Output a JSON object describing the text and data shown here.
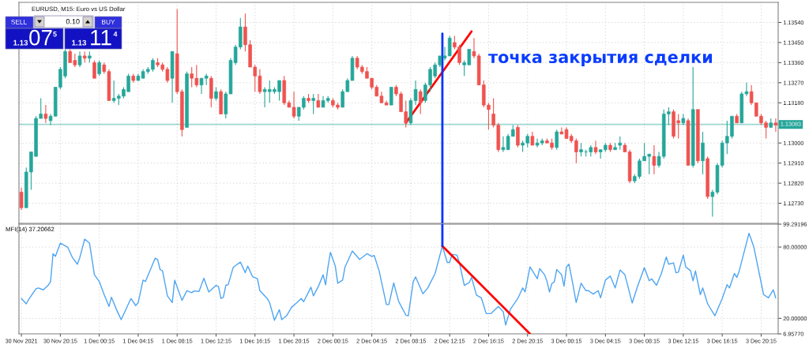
{
  "chart_data": [
    {
      "type": "candlestick",
      "title": "EURUSD, M15: Euro vs US Dollar",
      "x": [
        "2021-11-30T16:15",
        "2021-11-30T16:45",
        "2021-11-30T17:15",
        "2021-11-30T17:45",
        "2021-11-30T18:15",
        "2021-11-30T18:45",
        "2021-11-30T19:15",
        "2021-11-30T19:45",
        "2021-11-30T20:15",
        "2021-11-30T20:45",
        "2021-11-30T21:15",
        "2021-11-30T21:45",
        "2021-11-30T22:15",
        "2021-11-30T22:45",
        "2021-11-30T23:15",
        "2021-11-30T23:45",
        "2021-12-01T00:15",
        "2021-12-01T00:45",
        "2021-12-01T01:15",
        "2021-12-01T01:45",
        "2021-12-01T02:15",
        "2021-12-01T02:45",
        "2021-12-01T03:15",
        "2021-12-01T03:45",
        "2021-12-01T04:15",
        "2021-12-01T04:45",
        "2021-12-01T05:15",
        "2021-12-01T05:45",
        "2021-12-01T06:15",
        "2021-12-01T06:45",
        "2021-12-01T07:15",
        "2021-12-01T07:45",
        "2021-12-01T08:15",
        "2021-12-01T08:45",
        "2021-12-01T09:15",
        "2021-12-01T09:45",
        "2021-12-01T10:15",
        "2021-12-01T10:45",
        "2021-12-01T11:15",
        "2021-12-01T11:45",
        "2021-12-01T12:15",
        "2021-12-01T12:45",
        "2021-12-01T13:15",
        "2021-12-01T13:45",
        "2021-12-01T14:15",
        "2021-12-01T14:45",
        "2021-12-01T15:15",
        "2021-12-01T15:45",
        "2021-12-01T16:15",
        "2021-12-01T16:45",
        "2021-12-01T17:15",
        "2021-12-01T17:45",
        "2021-12-01T18:15",
        "2021-12-01T18:45",
        "2021-12-01T19:15",
        "2021-12-01T19:45",
        "2021-12-01T20:15",
        "2021-12-01T20:45",
        "2021-12-01T21:15",
        "2021-12-01T21:45",
        "2021-12-01T22:15",
        "2021-12-01T22:45",
        "2021-12-01T23:15",
        "2021-12-01T23:45",
        "2021-12-02T00:15",
        "2021-12-02T00:45",
        "2021-12-02T01:15",
        "2021-12-02T01:45",
        "2021-12-02T02:15",
        "2021-12-02T02:45",
        "2021-12-02T03:15",
        "2021-12-02T03:45",
        "2021-12-02T04:15",
        "2021-12-02T04:45",
        "2021-12-02T05:15",
        "2021-12-02T05:45",
        "2021-12-02T06:15",
        "2021-12-02T06:45",
        "2021-12-02T07:15",
        "2021-12-02T07:45",
        "2021-12-02T08:15",
        "2021-12-02T08:45",
        "2021-12-02T09:15",
        "2021-12-02T09:45",
        "2021-12-02T10:15",
        "2021-12-02T10:45",
        "2021-12-02T11:15",
        "2021-12-02T11:45",
        "2021-12-02T12:15",
        "2021-12-02T12:45",
        "2021-12-02T13:15",
        "2021-12-02T13:45",
        "2021-12-02T14:15",
        "2021-12-02T14:45",
        "2021-12-02T15:15",
        "2021-12-02T15:45",
        "2021-12-02T16:15",
        "2021-12-02T16:45",
        "2021-12-02T17:15",
        "2021-12-02T17:45",
        "2021-12-02T18:15",
        "2021-12-02T18:45",
        "2021-12-02T19:15",
        "2021-12-02T19:45",
        "2021-12-02T20:15",
        "2021-12-02T20:45",
        "2021-12-02T21:15",
        "2021-12-02T21:45",
        "2021-12-02T22:15",
        "2021-12-02T22:45",
        "2021-12-02T23:15",
        "2021-12-02T23:45",
        "2021-12-03T00:15",
        "2021-12-03T00:45",
        "2021-12-03T01:15",
        "2021-12-03T01:45",
        "2021-12-03T02:15",
        "2021-12-03T02:45",
        "2021-12-03T03:15",
        "2021-12-03T03:45",
        "2021-12-03T04:15",
        "2021-12-03T04:45",
        "2021-12-03T05:15",
        "2021-12-03T05:45",
        "2021-12-03T06:15",
        "2021-12-03T06:45",
        "2021-12-03T07:15",
        "2021-12-03T07:45",
        "2021-12-03T08:15",
        "2021-12-03T08:45",
        "2021-12-03T09:15",
        "2021-12-03T09:45",
        "2021-12-03T10:15",
        "2021-12-03T10:45",
        "2021-12-03T11:15",
        "2021-12-03T11:45",
        "2021-12-03T12:15",
        "2021-12-03T12:45",
        "2021-12-03T13:15",
        "2021-12-03T13:45",
        "2021-12-03T14:15",
        "2021-12-03T14:45",
        "2021-12-03T15:15",
        "2021-12-03T15:45",
        "2021-12-03T16:15",
        "2021-12-03T16:45",
        "2021-12-03T17:15",
        "2021-12-03T17:45",
        "2021-12-03T18:15",
        "2021-12-03T18:45",
        "2021-12-03T19:15",
        "2021-12-03T19:45",
        "2021-12-03T20:15",
        "2021-12-03T20:45",
        "2021-12-03T21:15",
        "2021-12-03T21:45"
      ],
      "ohlc": [
        [
          1.1278,
          1.128,
          1.127,
          1.1271
        ],
        [
          1.1271,
          1.1289,
          1.1271,
          1.1287
        ],
        [
          1.1287,
          1.1296,
          1.1279,
          1.1296
        ],
        [
          1.1294,
          1.1312,
          1.1294,
          1.1311
        ],
        [
          1.1311,
          1.132,
          1.1311,
          1.1313
        ],
        [
          1.1313,
          1.1317,
          1.1309,
          1.1311
        ],
        [
          1.131,
          1.1313,
          1.1308,
          1.1312
        ],
        [
          1.1312,
          1.1325,
          1.1312,
          1.1325
        ],
        [
          1.1325,
          1.1334,
          1.1324,
          1.1333
        ],
        [
          1.133,
          1.1342,
          1.1329,
          1.1341
        ],
        [
          1.1341,
          1.1342,
          1.1336,
          1.1336
        ],
        [
          1.1337,
          1.134,
          1.1334,
          1.1335
        ],
        [
          1.1335,
          1.1341,
          1.1334,
          1.1339
        ],
        [
          1.1339,
          1.1341,
          1.1336,
          1.1338
        ],
        [
          1.1338,
          1.1341,
          1.1336,
          1.1339
        ],
        [
          1.1336,
          1.1337,
          1.1329,
          1.1329
        ],
        [
          1.1331,
          1.1337,
          1.133,
          1.1336
        ],
        [
          1.1335,
          1.1336,
          1.1331,
          1.1332
        ],
        [
          1.1332,
          1.1333,
          1.1319,
          1.1319
        ],
        [
          1.1319,
          1.1328,
          1.1318,
          1.132
        ],
        [
          1.132,
          1.1322,
          1.1317,
          1.1321
        ],
        [
          1.1321,
          1.1325,
          1.132,
          1.1324
        ],
        [
          1.1323,
          1.1331,
          1.1323,
          1.133
        ],
        [
          1.133,
          1.1331,
          1.1327,
          1.1328
        ],
        [
          1.1328,
          1.1331,
          1.1328,
          1.133
        ],
        [
          1.1329,
          1.1333,
          1.1329,
          1.1332
        ],
        [
          1.1332,
          1.1334,
          1.1331,
          1.1333
        ],
        [
          1.1333,
          1.1338,
          1.1332,
          1.1337
        ],
        [
          1.1336,
          1.1338,
          1.1334,
          1.1335
        ],
        [
          1.1335,
          1.1336,
          1.1332,
          1.1333
        ],
        [
          1.1333,
          1.1334,
          1.1327,
          1.1328
        ],
        [
          1.1329,
          1.1341,
          1.1318,
          1.1341
        ],
        [
          1.134,
          1.136,
          1.1322,
          1.1323
        ],
        [
          1.1323,
          1.1324,
          1.1303,
          1.1306
        ],
        [
          1.1307,
          1.1332,
          1.1307,
          1.1331
        ],
        [
          1.1331,
          1.1334,
          1.1325,
          1.1329
        ],
        [
          1.1329,
          1.1335,
          1.1325,
          1.1326
        ],
        [
          1.1326,
          1.1329,
          1.1322,
          1.1329
        ],
        [
          1.1329,
          1.1331,
          1.1326,
          1.133
        ],
        [
          1.1329,
          1.133,
          1.1316,
          1.132
        ],
        [
          1.132,
          1.1325,
          1.1319,
          1.1323
        ],
        [
          1.1323,
          1.1324,
          1.1313,
          1.1313
        ],
        [
          1.1313,
          1.1323,
          1.1311,
          1.1322
        ],
        [
          1.1322,
          1.1338,
          1.1322,
          1.1337
        ],
        [
          1.1336,
          1.1344,
          1.1335,
          1.1343
        ],
        [
          1.1343,
          1.1356,
          1.1342,
          1.1352
        ],
        [
          1.1352,
          1.1358,
          1.1341,
          1.1344
        ],
        [
          1.1344,
          1.1346,
          1.1334,
          1.1334
        ],
        [
          1.1334,
          1.1335,
          1.1323,
          1.133
        ],
        [
          1.133,
          1.1333,
          1.1322,
          1.1323
        ],
        [
          1.1323,
          1.1325,
          1.1316,
          1.1324
        ],
        [
          1.1323,
          1.1328,
          1.1318,
          1.1324
        ],
        [
          1.1323,
          1.1325,
          1.1322,
          1.1324
        ],
        [
          1.1323,
          1.1328,
          1.1319,
          1.1328
        ],
        [
          1.1328,
          1.133,
          1.1317,
          1.1318
        ],
        [
          1.1318,
          1.1319,
          1.1316,
          1.1316
        ],
        [
          1.1316,
          1.1323,
          1.1311,
          1.1312
        ],
        [
          1.1312,
          1.1316,
          1.131,
          1.1316
        ],
        [
          1.1316,
          1.1321,
          1.1315,
          1.132
        ],
        [
          1.132,
          1.1322,
          1.1318,
          1.1319
        ],
        [
          1.1319,
          1.1322,
          1.1313,
          1.132
        ],
        [
          1.1319,
          1.1322,
          1.1316,
          1.1316
        ],
        [
          1.1316,
          1.1321,
          1.1316,
          1.1319
        ],
        [
          1.1319,
          1.1321,
          1.1318,
          1.132
        ],
        [
          1.1319,
          1.132,
          1.1316,
          1.1317
        ],
        [
          1.1317,
          1.1318,
          1.1315,
          1.1316
        ],
        [
          1.1316,
          1.1324,
          1.1316,
          1.1323
        ],
        [
          1.1323,
          1.1329,
          1.1323,
          1.1328
        ],
        [
          1.1328,
          1.1339,
          1.1328,
          1.1338
        ],
        [
          1.1338,
          1.1339,
          1.1333,
          1.1334
        ],
        [
          1.1334,
          1.1335,
          1.1331,
          1.1332
        ],
        [
          1.1332,
          1.1334,
          1.1329,
          1.1329
        ],
        [
          1.1329,
          1.1329,
          1.1324,
          1.1325
        ],
        [
          1.1325,
          1.1326,
          1.1321,
          1.1321
        ],
        [
          1.1321,
          1.1323,
          1.1318,
          1.1318
        ],
        [
          1.1318,
          1.1319,
          1.1317,
          1.1317
        ],
        [
          1.1317,
          1.1325,
          1.1317,
          1.1325
        ],
        [
          1.1325,
          1.1326,
          1.1321,
          1.1322
        ],
        [
          1.1322,
          1.1323,
          1.1314,
          1.1314
        ],
        [
          1.1314,
          1.1319,
          1.1307,
          1.1309
        ],
        [
          1.1309,
          1.132,
          1.1308,
          1.1319
        ],
        [
          1.1319,
          1.1328,
          1.1317,
          1.1324
        ],
        [
          1.1323,
          1.1324,
          1.1313,
          1.1318
        ],
        [
          1.1319,
          1.1327,
          1.1318,
          1.1326
        ],
        [
          1.1326,
          1.1334,
          1.1323,
          1.1333
        ],
        [
          1.133,
          1.1336,
          1.1329,
          1.1335
        ],
        [
          1.1335,
          1.1339,
          1.1334,
          1.1339
        ],
        [
          1.1338,
          1.1343,
          1.1337,
          1.1339
        ],
        [
          1.1339,
          1.1348,
          1.1339,
          1.1347
        ],
        [
          1.1345,
          1.1348,
          1.1342,
          1.1343
        ],
        [
          1.1343,
          1.1344,
          1.1335,
          1.1336
        ],
        [
          1.1335,
          1.1337,
          1.133,
          1.1336
        ],
        [
          1.1335,
          1.1342,
          1.1335,
          1.1342
        ],
        [
          1.1341,
          1.1347,
          1.1338,
          1.1339
        ],
        [
          1.1339,
          1.134,
          1.1326,
          1.1326
        ],
        [
          1.1326,
          1.1328,
          1.1316,
          1.1317
        ],
        [
          1.1317,
          1.1318,
          1.1306,
          1.1315
        ],
        [
          1.1313,
          1.132,
          1.1307,
          1.1308
        ],
        [
          1.1308,
          1.1309,
          1.1296,
          1.1297
        ],
        [
          1.1297,
          1.1303,
          1.1296,
          1.1298
        ],
        [
          1.1297,
          1.1304,
          1.1297,
          1.1303
        ],
        [
          1.1303,
          1.1308,
          1.1303,
          1.1306
        ],
        [
          1.1307,
          1.1308,
          1.1298,
          1.1299
        ],
        [
          1.1299,
          1.1301,
          1.1296,
          1.13
        ],
        [
          1.13,
          1.1304,
          1.1298,
          1.1303
        ],
        [
          1.1303,
          1.1305,
          1.1299,
          1.1299
        ],
        [
          1.1299,
          1.1302,
          1.1298,
          1.13
        ],
        [
          1.13,
          1.1302,
          1.1299,
          1.1301
        ],
        [
          1.1301,
          1.1302,
          1.13,
          1.13
        ],
        [
          1.13,
          1.1302,
          1.1297,
          1.1298
        ],
        [
          1.1298,
          1.1306,
          1.1297,
          1.1305
        ],
        [
          1.1305,
          1.1307,
          1.1304,
          1.1304
        ],
        [
          1.1306,
          1.1307,
          1.1302,
          1.1302
        ],
        [
          1.1303,
          1.1304,
          1.13,
          1.1301
        ],
        [
          1.1301,
          1.1302,
          1.1291,
          1.1296
        ],
        [
          1.1296,
          1.13,
          1.1294,
          1.1297
        ],
        [
          1.1296,
          1.1297,
          1.1294,
          1.1296
        ],
        [
          1.1296,
          1.1299,
          1.1294,
          1.1298
        ],
        [
          1.1298,
          1.1301,
          1.1295,
          1.1296
        ],
        [
          1.1296,
          1.1297,
          1.1293,
          1.1297
        ],
        [
          1.1297,
          1.13,
          1.1296,
          1.1299
        ],
        [
          1.1299,
          1.13,
          1.1296,
          1.1297
        ],
        [
          1.1297,
          1.13,
          1.1297,
          1.1298
        ],
        [
          1.1299,
          1.1303,
          1.1297,
          1.13
        ],
        [
          1.1299,
          1.13,
          1.1296,
          1.1296
        ],
        [
          1.1296,
          1.1297,
          1.1282,
          1.1283
        ],
        [
          1.1283,
          1.1286,
          1.1282,
          1.1285
        ],
        [
          1.1285,
          1.1293,
          1.1284,
          1.1292
        ],
        [
          1.1292,
          1.13,
          1.1292,
          1.1294
        ],
        [
          1.1294,
          1.1295,
          1.1286,
          1.1295
        ],
        [
          1.1294,
          1.1299,
          1.1286,
          1.129
        ],
        [
          1.129,
          1.1296,
          1.1289,
          1.1294
        ],
        [
          1.1294,
          1.1315,
          1.1293,
          1.1313
        ],
        [
          1.1313,
          1.1316,
          1.1308,
          1.1314
        ],
        [
          1.1314,
          1.1315,
          1.1302,
          1.1303
        ],
        [
          1.131,
          1.1313,
          1.1302,
          1.1309
        ],
        [
          1.1309,
          1.1313,
          1.1308,
          1.1311
        ],
        [
          1.131,
          1.1311,
          1.129,
          1.129
        ],
        [
          1.129,
          1.1334,
          1.1289,
          1.1315
        ],
        [
          1.1315,
          1.1315,
          1.1291,
          1.1292
        ],
        [
          1.1292,
          1.1305,
          1.1286,
          1.13
        ],
        [
          1.1293,
          1.1294,
          1.1275,
          1.1276
        ],
        [
          1.1276,
          1.1279,
          1.1267,
          1.1278
        ],
        [
          1.1278,
          1.1291,
          1.1277,
          1.129
        ],
        [
          1.129,
          1.1301,
          1.1289,
          1.13
        ],
        [
          1.13,
          1.131,
          1.1295,
          1.1303
        ],
        [
          1.1303,
          1.1312,
          1.1302,
          1.1312
        ],
        [
          1.1312,
          1.1313,
          1.1309,
          1.1309
        ],
        [
          1.1309,
          1.1323,
          1.1309,
          1.1322
        ],
        [
          1.1322,
          1.1327,
          1.1321,
          1.1323
        ],
        [
          1.1323,
          1.1326,
          1.1317,
          1.1318
        ],
        [
          1.1318,
          1.1318,
          1.1312,
          1.1312
        ],
        [
          1.1312,
          1.1313,
          1.1308,
          1.1309
        ],
        [
          1.1309,
          1.131,
          1.1302,
          1.1307
        ],
        [
          1.1307,
          1.1311,
          1.1307,
          1.1309
        ],
        [
          1.1309,
          1.1311,
          1.1305,
          1.1308
        ]
      ],
      "colors": [
        "#ef5350",
        "#26a69a",
        "#26a69a",
        "#26a69a",
        "#26a69a",
        "#ef5350",
        "#26a69a",
        "#26a69a",
        "#26a69a",
        "#26a69a",
        "#ef5350",
        "#ef5350",
        "#26a69a",
        "#ef5350",
        "#26a69a",
        "#ef5350",
        "#26a69a",
        "#ef5350",
        "#ef5350",
        "#26a69a",
        "#26a69a",
        "#26a69a",
        "#26a69a",
        "#ef5350",
        "#26a69a",
        "#26a69a",
        "#26a69a",
        "#26a69a",
        "#ef5350",
        "#ef5350",
        "#ef5350",
        "#26a69a",
        "#ef5350",
        "#ef5350",
        "#26a69a",
        "#ef5350",
        "#ef5350",
        "#26a69a",
        "#26a69a",
        "#ef5350",
        "#26a69a",
        "#ef5350",
        "#26a69a",
        "#26a69a",
        "#26a69a",
        "#26a69a",
        "#ef5350",
        "#ef5350",
        "#ef5350",
        "#ef5350",
        "#26a69a",
        "#26a69a",
        "#26a69a",
        "#26a69a",
        "#ef5350",
        "#ef5350",
        "#ef5350",
        "#26a69a",
        "#26a69a",
        "#ef5350",
        "#26a69a",
        "#ef5350",
        "#26a69a",
        "#26a69a",
        "#ef5350",
        "#ef5350",
        "#26a69a",
        "#26a69a",
        "#26a69a",
        "#ef5350",
        "#ef5350",
        "#ef5350",
        "#ef5350",
        "#ef5350",
        "#ef5350",
        "#ef5350",
        "#26a69a",
        "#ef5350",
        "#ef5350",
        "#ef5350",
        "#26a69a",
        "#26a69a",
        "#ef5350",
        "#26a69a",
        "#26a69a",
        "#26a69a",
        "#26a69a",
        "#26a69a",
        "#26a69a",
        "#ef5350",
        "#ef5350",
        "#26a69a",
        "#26a69a",
        "#ef5350",
        "#ef5350",
        "#ef5350",
        "#ef5350",
        "#ef5350",
        "#ef5350",
        "#26a69a",
        "#26a69a",
        "#26a69a",
        "#ef5350",
        "#26a69a",
        "#26a69a",
        "#ef5350",
        "#26a69a",
        "#26a69a",
        "#ef5350",
        "#ef5350",
        "#26a69a",
        "#ef5350",
        "#ef5350",
        "#ef5350",
        "#ef5350",
        "#26a69a",
        "#26a69a",
        "#26a69a",
        "#ef5350",
        "#26a69a",
        "#26a69a",
        "#ef5350",
        "#26a69a",
        "#26a69a",
        "#ef5350",
        "#ef5350",
        "#26a69a",
        "#26a69a",
        "#26a69a",
        "#26a69a",
        "#ef5350",
        "#26a69a",
        "#26a69a",
        "#26a69a",
        "#ef5350",
        "#ef5350",
        "#26a69a",
        "#ef5350",
        "#26a69a",
        "#ef5350",
        "#26a69a",
        "#ef5350",
        "#26a69a",
        "#26a69a",
        "#26a69a",
        "#26a69a",
        "#26a69a",
        "#ef5350",
        "#26a69a",
        "#26a69a",
        "#ef5350",
        "#ef5350",
        "#ef5350",
        "#ef5350",
        "#26a69a",
        "#ef5350"
      ],
      "series": [
        {
          "type": "line",
          "color": "#ff0000",
          "x": [
            "2021-12-02T07:45",
            "2021-12-02T14:30"
          ],
          "values": [
            1.1309,
            1.135
          ]
        },
        {
          "type": "line",
          "color": "#0033ff",
          "x": [
            "2021-12-02T11:30",
            "2021-12-02T11:30"
          ],
          "values": [
            1.1349,
            1.1264
          ]
        }
      ],
      "xlim": [
        "2021-11-30T16:00",
        "2021-12-03T22:00"
      ],
      "xticks": [
        {
          "value": "2021-11-30T16:15",
          "label": null
        },
        {
          "value": "2021-11-30T20:15",
          "label": null
        },
        {
          "value": "2021-12-01T00:15",
          "label": null
        },
        {
          "value": "2021-12-01T04:15",
          "label": null
        },
        {
          "value": "2021-12-01T08:15",
          "label": null
        },
        {
          "value": "2021-12-01T12:15",
          "label": null
        },
        {
          "value": "2021-12-01T16:15",
          "label": null
        },
        {
          "value": "2021-12-01T20:15",
          "label": null
        },
        {
          "value": "2021-12-02T00:15",
          "label": null
        },
        {
          "value": "2021-12-02T04:15",
          "label": null
        },
        {
          "value": "2021-12-02T08:15",
          "label": null
        },
        {
          "value": "2021-12-02T12:15",
          "label": null
        },
        {
          "value": "2021-12-02T16:15",
          "label": null
        },
        {
          "value": "2021-12-02T20:15",
          "label": null
        },
        {
          "value": "2021-12-03T00:15",
          "label": null
        },
        {
          "value": "2021-12-03T04:15",
          "label": null
        },
        {
          "value": "2021-12-03T08:15",
          "label": null
        },
        {
          "value": "2021-12-03T12:15",
          "label": null
        },
        {
          "value": "2021-12-03T16:15",
          "label": null
        },
        {
          "value": "2021-12-03T20:15",
          "label": null
        }
      ],
      "ylim": [
        1.1264,
        1.1363
      ],
      "yticks": [
        {
          "value": 1.1273,
          "label": "1.12730"
        },
        {
          "value": 1.1282,
          "label": "1.12820"
        },
        {
          "value": 1.1291,
          "label": "1.12910"
        },
        {
          "value": 1.13,
          "label": "1.13000"
        },
        {
          "value": 1.1318,
          "label": "1.13180"
        },
        {
          "value": 1.1327,
          "label": "1.13270"
        },
        {
          "value": 1.1336,
          "label": "1.13360"
        },
        {
          "value": 1.1345,
          "label": "1.13450"
        },
        {
          "value": 1.1354,
          "label": "1.13540"
        }
      ],
      "tick_labels": "y",
      "grid": true,
      "ref_lines": [
        {
          "axis": "y",
          "value": 1.13083,
          "label": "1.13083",
          "color": "#26a69a"
        }
      ],
      "annotations": [
        "точка закрытия сделки",
        "SELL",
        "0.10",
        "BUY",
        "1.13",
        "07",
        "5",
        "1.13",
        "11",
        "4"
      ]
    },
    {
      "type": "line",
      "title": "MFI(14) 37.20662",
      "series": [
        {
          "color": "#4ea5f2",
          "x": [
            "2021-11-30T16:15",
            "2021-11-30T16:45",
            "2021-11-30T17:00",
            "2021-11-30T17:45",
            "2021-11-30T18:00",
            "2021-11-30T18:30",
            "2021-11-30T19:00",
            "2021-11-30T19:15",
            "2021-11-30T19:30",
            "2021-11-30T19:45",
            "2021-11-30T20:15",
            "2021-11-30T21:00",
            "2021-11-30T21:30",
            "2021-11-30T22:00",
            "2021-11-30T22:15",
            "2021-11-30T22:45",
            "2021-11-30T23:15",
            "2021-11-30T23:45",
            "2021-12-01T00:15",
            "2021-12-01T00:45",
            "2021-12-01T01:15",
            "2021-12-01T01:30",
            "2021-12-01T02:00",
            "2021-12-01T02:15",
            "2021-12-01T02:30",
            "2021-12-01T03:30",
            "2021-12-01T04:00",
            "2021-12-01T04:15",
            "2021-12-01T04:45",
            "2021-12-01T05:00",
            "2021-12-01T06:00",
            "2021-12-01T06:15",
            "2021-12-01T06:30",
            "2021-12-01T06:45",
            "2021-12-01T07:15",
            "2021-12-01T07:45",
            "2021-12-01T08:00",
            "2021-12-01T08:45",
            "2021-12-01T09:15",
            "2021-12-01T09:45",
            "2021-12-01T10:00",
            "2021-12-01T10:30",
            "2021-12-01T11:00",
            "2021-12-01T11:30",
            "2021-12-01T12:15",
            "2021-12-01T12:30",
            "2021-12-01T12:45",
            "2021-12-01T13:00",
            "2021-12-01T13:15",
            "2021-12-01T13:30",
            "2021-12-01T14:00",
            "2021-12-01T14:15",
            "2021-12-01T14:45",
            "2021-12-01T15:15",
            "2021-12-01T15:30",
            "2021-12-01T16:00",
            "2021-12-01T16:30",
            "2021-12-01T16:45",
            "2021-12-01T17:30",
            "2021-12-01T17:45",
            "2021-12-01T18:15",
            "2021-12-01T18:45",
            "2021-12-01T19:00",
            "2021-12-01T19:30",
            "2021-12-01T20:00",
            "2021-12-01T20:30",
            "2021-12-01T21:00",
            "2021-12-01T21:15",
            "2021-12-01T22:00",
            "2021-12-01T22:15",
            "2021-12-01T22:45",
            "2021-12-01T23:15",
            "2021-12-01T23:30",
            "2021-12-01T23:45",
            "2021-12-02T00:00",
            "2021-12-02T00:30",
            "2021-12-02T00:45",
            "2021-12-02T01:15",
            "2021-12-02T01:30",
            "2021-12-02T02:15",
            "2021-12-02T03:00",
            "2021-12-02T03:45",
            "2021-12-02T04:15",
            "2021-12-02T04:30",
            "2021-12-02T05:00",
            "2021-12-02T05:45",
            "2021-12-02T06:00",
            "2021-12-02T06:30",
            "2021-12-02T07:00",
            "2021-12-02T07:45",
            "2021-12-02T08:00",
            "2021-12-02T08:30",
            "2021-12-02T08:45",
            "2021-12-02T09:30",
            "2021-12-02T10:00",
            "2021-12-02T10:45",
            "2021-12-02T11:30",
            "2021-12-02T12:00",
            "2021-12-02T12:15",
            "2021-12-02T12:30",
            "2021-12-02T13:00",
            "2021-12-02T13:15",
            "2021-12-02T13:45",
            "2021-12-02T14:15",
            "2021-12-02T14:30",
            "2021-12-02T15:00",
            "2021-12-02T15:30",
            "2021-12-02T16:00",
            "2021-12-02T16:30",
            "2021-12-02T17:15",
            "2021-12-02T17:45",
            "2021-12-02T18:00",
            "2021-12-02T18:30",
            "2021-12-02T19:15",
            "2021-12-02T19:45",
            "2021-12-02T20:00",
            "2021-12-02T20:30",
            "2021-12-02T20:45",
            "2021-12-02T21:15",
            "2021-12-02T21:30",
            "2021-12-02T22:00",
            "2021-12-02T22:15",
            "2021-12-02T22:30",
            "2021-12-02T22:45",
            "2021-12-02T23:00",
            "2021-12-02T23:15",
            "2021-12-02T23:45",
            "2021-12-03T00:00",
            "2021-12-03T00:15",
            "2021-12-03T00:30",
            "2021-12-03T00:45",
            "2021-12-03T01:15",
            "2021-12-03T01:45",
            "2021-12-03T02:15",
            "2021-12-03T02:30",
            "2021-12-03T03:00",
            "2021-12-03T03:30",
            "2021-12-03T03:45",
            "2021-12-03T04:15",
            "2021-12-03T04:45",
            "2021-12-03T05:15",
            "2021-12-03T05:45",
            "2021-12-03T06:15",
            "2021-12-03T06:30",
            "2021-12-03T07:00",
            "2021-12-03T07:30",
            "2021-12-03T08:15",
            "2021-12-03T08:45",
            "2021-12-03T09:00",
            "2021-12-03T09:30",
            "2021-12-03T10:00",
            "2021-12-03T10:30",
            "2021-12-03T10:45",
            "2021-12-03T11:15",
            "2021-12-03T11:30",
            "2021-12-03T11:45",
            "2021-12-03T12:15",
            "2021-12-03T12:30",
            "2021-12-03T13:00",
            "2021-12-03T13:15",
            "2021-12-03T13:30",
            "2021-12-03T14:00",
            "2021-12-03T14:15",
            "2021-12-03T14:45",
            "2021-12-03T15:30",
            "2021-12-03T16:15",
            "2021-12-03T16:45",
            "2021-12-03T17:00",
            "2021-12-03T17:30",
            "2021-12-03T17:45",
            "2021-12-03T18:00",
            "2021-12-03T19:00",
            "2021-12-03T19:30",
            "2021-12-03T20:30",
            "2021-12-03T21:00",
            "2021-12-03T21:30",
            "2021-12-03T21:45"
          ],
          "values": [
            36.7,
            32.2,
            36.0,
            44.9,
            45.6,
            44.0,
            47.8,
            51.1,
            74.4,
            72.2,
            83.3,
            80.0,
            71.1,
            65.6,
            71.1,
            86.7,
            83.3,
            56.7,
            51.1,
            40.0,
            30.0,
            37.8,
            27.8,
            23.3,
            18.9,
            36.7,
            30.7,
            33.3,
            52.2,
            51.1,
            70.7,
            69.3,
            61.1,
            60.0,
            38.9,
            33.3,
            52.2,
            35.1,
            43.3,
            41.6,
            43.1,
            42.7,
            53.8,
            42.2,
            47.8,
            46.7,
            36.7,
            37.8,
            47.8,
            48.4,
            62.7,
            64.4,
            67.3,
            58.4,
            64.0,
            55.1,
            53.3,
            43.3,
            36.7,
            33.3,
            18.4,
            27.3,
            18.9,
            22.2,
            29.3,
            32.9,
            36.7,
            34.0,
            46.2,
            38.9,
            46.7,
            56.7,
            48.2,
            63.3,
            75.6,
            64.0,
            49.6,
            52.2,
            63.3,
            76.7,
            69.6,
            74.4,
            72.2,
            72.9,
            60.0,
            31.6,
            31.6,
            49.8,
            34.4,
            22.7,
            22.2,
            50.7,
            54.9,
            40.7,
            45.6,
            57.8,
            80.9,
            67.1,
            67.1,
            73.8,
            73.3,
            66.7,
            47.8,
            50.0,
            54.4,
            39.6,
            37.3,
            24.0,
            24.0,
            30.0,
            25.6,
            14.4,
            27.8,
            36.7,
            45.6,
            42.2,
            63.3,
            60.0,
            53.3,
            61.8,
            56.7,
            51.1,
            42.2,
            49.3,
            50.7,
            61.1,
            56.7,
            47.1,
            63.3,
            65.6,
            55.6,
            33.3,
            49.6,
            43.3,
            43.3,
            40.4,
            43.3,
            37.3,
            52.2,
            55.6,
            45.6,
            60.7,
            56.7,
            48.9,
            32.9,
            45.6,
            62.7,
            51.6,
            53.3,
            47.8,
            57.8,
            71.6,
            65.6,
            66.7,
            58.4,
            58.9,
            73.3,
            63.3,
            60.0,
            51.6,
            60.0,
            40.0,
            45.6,
            32.2,
            22.2,
            36.7,
            48.4,
            45.6,
            57.8,
            54.4,
            60.0,
            91.6,
            80.0,
            40.0,
            37.3,
            44.0,
            37.2
          ]
        },
        {
          "type": "line",
          "color": "#ff0000",
          "x": [
            "2021-12-02T11:30",
            "2021-12-02T20:30"
          ],
          "values": [
            80.9,
            7.0
          ]
        },
        {
          "type": "line",
          "color": "#0033ff",
          "x": [
            "2021-12-02T11:30",
            "2021-12-02T11:30"
          ],
          "values": [
            99.2,
            80.9
          ]
        }
      ],
      "xlim": [
        "2021-11-30T16:00",
        "2021-12-03T22:00"
      ],
      "xticks": [
        {
          "value": "2021-11-30T16:15",
          "label": "30 Nov 2021"
        },
        {
          "value": "2021-11-30T20:15",
          "label": "30 Nov 20:15"
        },
        {
          "value": "2021-12-01T00:15",
          "label": "1 Dec 00:15"
        },
        {
          "value": "2021-12-01T04:15",
          "label": "1 Dec 04:15"
        },
        {
          "value": "2021-12-01T08:15",
          "label": "1 Dec 08:15"
        },
        {
          "value": "2021-12-01T12:15",
          "label": "1 Dec 12:15"
        },
        {
          "value": "2021-12-01T16:15",
          "label": "1 Dec 16:15"
        },
        {
          "value": "2021-12-01T20:15",
          "label": "1 Dec 20:15"
        },
        {
          "value": "2021-12-02T00:15",
          "label": "2 Dec 00:15"
        },
        {
          "value": "2021-12-02T04:15",
          "label": "2 Dec 04:15"
        },
        {
          "value": "2021-12-02T08:15",
          "label": "2 Dec 08:15"
        },
        {
          "value": "2021-12-02T12:15",
          "label": "2 Dec 12:15"
        },
        {
          "value": "2021-12-02T16:15",
          "label": "2 Dec 16:15"
        },
        {
          "value": "2021-12-02T20:15",
          "label": "2 Dec 20:15"
        },
        {
          "value": "2021-12-03T00:15",
          "label": "3 Dec 00:15"
        },
        {
          "value": "2021-12-03T04:15",
          "label": "3 Dec 04:15"
        },
        {
          "value": "2021-12-03T08:15",
          "label": "3 Dec 08:15"
        },
        {
          "value": "2021-12-03T12:15",
          "label": "3 Dec 12:15"
        },
        {
          "value": "2021-12-03T16:15",
          "label": "3 Dec 16:15"
        },
        {
          "value": "2021-12-03T20:15",
          "label": "3 Dec 20:15"
        }
      ],
      "ylim": [
        6.9577,
        99.29196
      ],
      "yticks": [
        {
          "value": 6.9577,
          "label": "6.95770"
        },
        {
          "value": 20,
          "label": "20.00000"
        },
        {
          "value": 80,
          "label": "80.00000"
        },
        {
          "value": 99.29196,
          "label": "99.29196"
        }
      ],
      "grid": true
    }
  ]
}
